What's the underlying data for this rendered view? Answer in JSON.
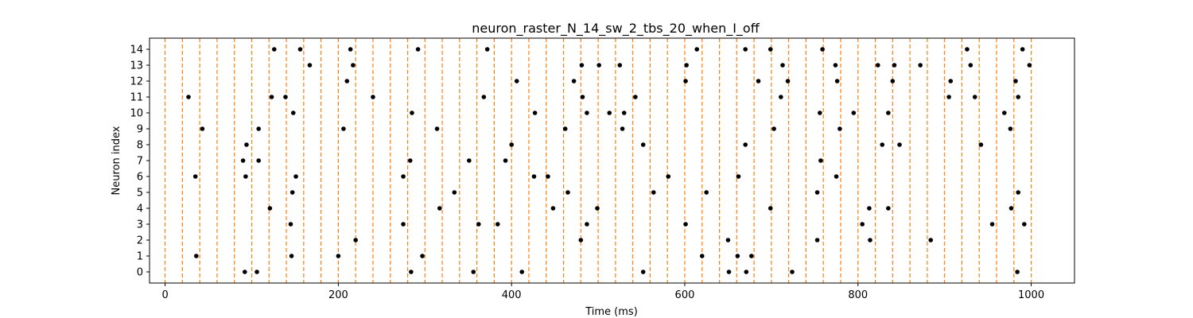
{
  "chart_data": {
    "type": "scatter",
    "title": "neuron_raster_N_14_sw_2_tbs_20_when_I_off",
    "xlabel": "Time (ms)",
    "ylabel": "Neuron index",
    "xlim": [
      -18,
      1050
    ],
    "ylim": [
      -0.7,
      14.7
    ],
    "xticks": [
      0,
      200,
      400,
      600,
      800,
      1000
    ],
    "yticks": [
      0,
      1,
      2,
      3,
      4,
      5,
      6,
      7,
      8,
      9,
      10,
      11,
      12,
      13,
      14
    ],
    "grid": false,
    "marker_color": "#000000",
    "vline_color": "#ff7f0e",
    "vline_style": "dashed",
    "vlines_ms": [
      0,
      20,
      40,
      60,
      80,
      100,
      120,
      140,
      160,
      180,
      200,
      220,
      240,
      260,
      280,
      300,
      320,
      340,
      360,
      380,
      400,
      420,
      440,
      460,
      480,
      500,
      520,
      540,
      560,
      580,
      600,
      620,
      640,
      660,
      680,
      700,
      720,
      740,
      760,
      780,
      800,
      820,
      840,
      860,
      880,
      900,
      920,
      940,
      960,
      980,
      1000
    ],
    "spikes": [
      {
        "neuron": 0,
        "times": [
          92,
          106,
          284,
          356,
          412,
          552,
          651,
          671,
          724,
          984
        ]
      },
      {
        "neuron": 1,
        "times": [
          36,
          146,
          200,
          297,
          620,
          661,
          677
        ]
      },
      {
        "neuron": 2,
        "times": [
          220,
          480,
          650,
          753,
          814,
          884
        ]
      },
      {
        "neuron": 3,
        "times": [
          145,
          275,
          362,
          384,
          487,
          601,
          805,
          955,
          992
        ]
      },
      {
        "neuron": 4,
        "times": [
          121,
          317,
          448,
          499,
          699,
          813,
          835,
          977
        ]
      },
      {
        "neuron": 5,
        "times": [
          147,
          334,
          465,
          564,
          625,
          753,
          985
        ]
      },
      {
        "neuron": 6,
        "times": [
          35,
          93,
          151,
          275,
          426,
          442,
          581,
          662,
          775
        ]
      },
      {
        "neuron": 7,
        "times": [
          90,
          108,
          283,
          351,
          393,
          757
        ]
      },
      {
        "neuron": 8,
        "times": [
          94,
          400,
          552,
          670,
          828,
          848,
          942
        ]
      },
      {
        "neuron": 9,
        "times": [
          43,
          108,
          206,
          314,
          462,
          528,
          703,
          779,
          976
        ]
      },
      {
        "neuron": 10,
        "times": [
          148,
          285,
          427,
          487,
          513,
          530,
          756,
          795,
          835,
          969
        ]
      },
      {
        "neuron": 11,
        "times": [
          27,
          123,
          139,
          240,
          368,
          482,
          543,
          711,
          905,
          935,
          985
        ]
      },
      {
        "neuron": 12,
        "times": [
          210,
          406,
          472,
          601,
          685,
          719,
          776,
          840,
          907,
          982
        ]
      },
      {
        "neuron": 13,
        "times": [
          167,
          217,
          481,
          501,
          525,
          602,
          713,
          774,
          823,
          842,
          872,
          930,
          998
        ]
      },
      {
        "neuron": 14,
        "times": [
          126,
          156,
          214,
          292,
          372,
          614,
          670,
          699,
          759,
          926,
          990
        ]
      }
    ]
  }
}
